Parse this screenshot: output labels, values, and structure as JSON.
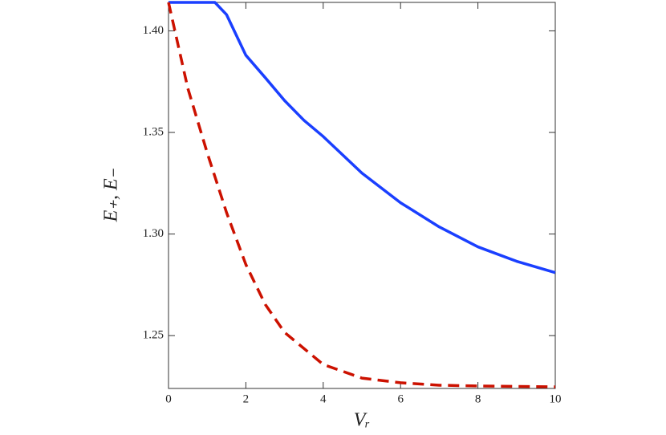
{
  "chart_data": {
    "type": "line",
    "x_label": "Vᵣ",
    "y_label": "E₊,  E₋",
    "xlim": [
      0,
      10
    ],
    "ylim": [
      1.224,
      1.414
    ],
    "xticks": [
      0,
      2,
      4,
      6,
      8,
      10
    ],
    "yticks": [
      1.25,
      {
        "value": 1.3,
        "label": "1.30"
      },
      1.35,
      {
        "value": 1.4,
        "label": "1.40"
      }
    ],
    "series": [
      {
        "color": "#1a3fff",
        "dashed": false,
        "x": [
          0,
          1.2,
          1.5,
          2,
          2.5,
          3,
          3.5,
          4,
          5,
          6,
          7,
          8,
          9,
          10
        ],
        "values": [
          1.414,
          1.414,
          1.408,
          1.388,
          1.377,
          1.3657,
          1.356,
          1.348,
          1.33,
          1.3154,
          1.3035,
          1.2937,
          1.2866,
          1.281
        ]
      },
      {
        "color": "#cc1100",
        "dashed": true,
        "x": [
          0,
          0.5,
          1,
          1.5,
          2,
          2.5,
          3,
          4,
          5,
          6,
          7,
          8,
          10
        ],
        "values": [
          1.414,
          1.3717,
          1.34,
          1.3106,
          1.285,
          1.2654,
          1.2516,
          1.2358,
          1.2291,
          1.2268,
          1.2256,
          1.2252,
          1.2248
        ]
      }
    ]
  }
}
